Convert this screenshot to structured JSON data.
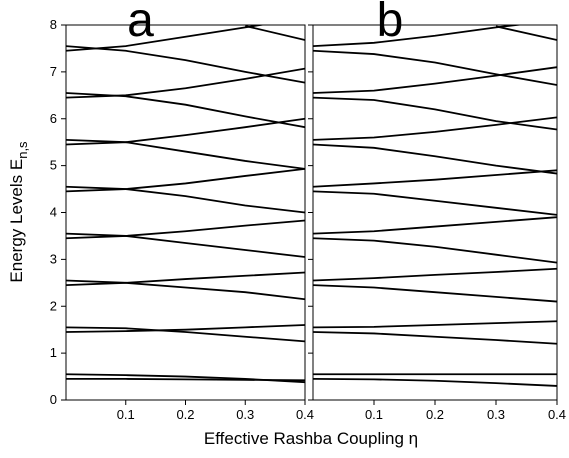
{
  "chart_data": [
    {
      "type": "line",
      "title": "a",
      "ylabel": "Energy Levels E",
      "ylabel_sub": "n,s",
      "xlabel": "Effective Rashba Coupling η",
      "x": [
        0,
        0.1,
        0.2,
        0.3,
        0.4
      ],
      "xlim": [
        0,
        0.4
      ],
      "ylim": [
        0,
        8
      ],
      "xticks": [
        0.1,
        0.2,
        0.3,
        0.4
      ],
      "yticks": [
        0,
        1,
        2,
        3,
        4,
        5,
        6,
        7,
        8
      ],
      "series": [
        {
          "color": "#000000",
          "values": [
            0.55,
            0.53,
            0.5,
            0.45,
            0.38
          ]
        },
        {
          "color": "#000000",
          "values": [
            0.45,
            0.45,
            0.44,
            0.43,
            0.42
          ]
        },
        {
          "color": "#000000",
          "values": [
            1.55,
            1.53,
            1.45,
            1.35,
            1.25
          ]
        },
        {
          "color": "#000000",
          "values": [
            1.45,
            1.47,
            1.5,
            1.55,
            1.6
          ]
        },
        {
          "color": "#000000",
          "values": [
            2.55,
            2.5,
            2.4,
            2.3,
            2.15
          ]
        },
        {
          "color": "#000000",
          "values": [
            2.45,
            2.5,
            2.58,
            2.65,
            2.72
          ]
        },
        {
          "color": "#000000",
          "values": [
            3.55,
            3.5,
            3.35,
            3.2,
            3.05
          ]
        },
        {
          "color": "#000000",
          "values": [
            3.45,
            3.5,
            3.6,
            3.72,
            3.83
          ]
        },
        {
          "color": "#000000",
          "values": [
            4.55,
            4.5,
            4.35,
            4.15,
            4.0
          ]
        },
        {
          "color": "#000000",
          "values": [
            4.45,
            4.5,
            4.62,
            4.78,
            4.93
          ]
        },
        {
          "color": "#000000",
          "values": [
            5.55,
            5.5,
            5.3,
            5.1,
            4.93
          ]
        },
        {
          "color": "#000000",
          "values": [
            5.45,
            5.5,
            5.65,
            5.82,
            6.0
          ]
        },
        {
          "color": "#000000",
          "values": [
            6.55,
            6.48,
            6.3,
            6.05,
            5.82
          ]
        },
        {
          "color": "#000000",
          "values": [
            6.45,
            6.5,
            6.65,
            6.85,
            7.07
          ]
        },
        {
          "color": "#000000",
          "values": [
            7.55,
            7.45,
            7.25,
            7.0,
            6.77
          ]
        },
        {
          "color": "#000000",
          "values": [
            7.45,
            7.55,
            7.75,
            7.95,
            8.15
          ]
        },
        {
          "color": "#000000",
          "values": [
            null,
            null,
            null,
            7.98,
            7.68
          ]
        }
      ]
    },
    {
      "type": "line",
      "title": "b",
      "x": [
        0,
        0.1,
        0.2,
        0.3,
        0.4
      ],
      "xlim": [
        0,
        0.4
      ],
      "ylim": [
        0,
        8
      ],
      "xticks": [
        0.1,
        0.2,
        0.3,
        0.4
      ],
      "yticks": [
        0,
        1,
        2,
        3,
        4,
        5,
        6,
        7,
        8
      ],
      "series": [
        {
          "color": "#000000",
          "values": [
            0.55,
            0.55,
            0.55,
            0.55,
            0.55
          ]
        },
        {
          "color": "#000000",
          "values": [
            0.45,
            0.44,
            0.41,
            0.36,
            0.3
          ]
        },
        {
          "color": "#000000",
          "values": [
            1.55,
            1.56,
            1.6,
            1.64,
            1.68
          ]
        },
        {
          "color": "#000000",
          "values": [
            1.45,
            1.42,
            1.35,
            1.28,
            1.2
          ]
        },
        {
          "color": "#000000",
          "values": [
            2.55,
            2.6,
            2.67,
            2.73,
            2.8
          ]
        },
        {
          "color": "#000000",
          "values": [
            2.45,
            2.4,
            2.3,
            2.2,
            2.1
          ]
        },
        {
          "color": "#000000",
          "values": [
            3.55,
            3.6,
            3.7,
            3.8,
            3.9
          ]
        },
        {
          "color": "#000000",
          "values": [
            3.45,
            3.4,
            3.27,
            3.1,
            2.93
          ]
        },
        {
          "color": "#000000",
          "values": [
            4.55,
            4.62,
            4.7,
            4.8,
            4.9
          ]
        },
        {
          "color": "#000000",
          "values": [
            4.45,
            4.4,
            4.25,
            4.1,
            3.95
          ]
        },
        {
          "color": "#000000",
          "values": [
            5.55,
            5.6,
            5.72,
            5.87,
            6.03
          ]
        },
        {
          "color": "#000000",
          "values": [
            5.45,
            5.38,
            5.2,
            5.0,
            4.83
          ]
        },
        {
          "color": "#000000",
          "values": [
            6.55,
            6.6,
            6.75,
            6.92,
            7.1
          ]
        },
        {
          "color": "#000000",
          "values": [
            6.45,
            6.4,
            6.2,
            5.95,
            5.77
          ]
        },
        {
          "color": "#000000",
          "values": [
            7.55,
            7.62,
            7.77,
            7.95,
            8.1
          ]
        },
        {
          "color": "#000000",
          "values": [
            7.45,
            7.38,
            7.2,
            6.95,
            6.72
          ]
        },
        {
          "color": "#000000",
          "values": [
            null,
            null,
            null,
            7.97,
            7.68
          ]
        }
      ]
    }
  ]
}
